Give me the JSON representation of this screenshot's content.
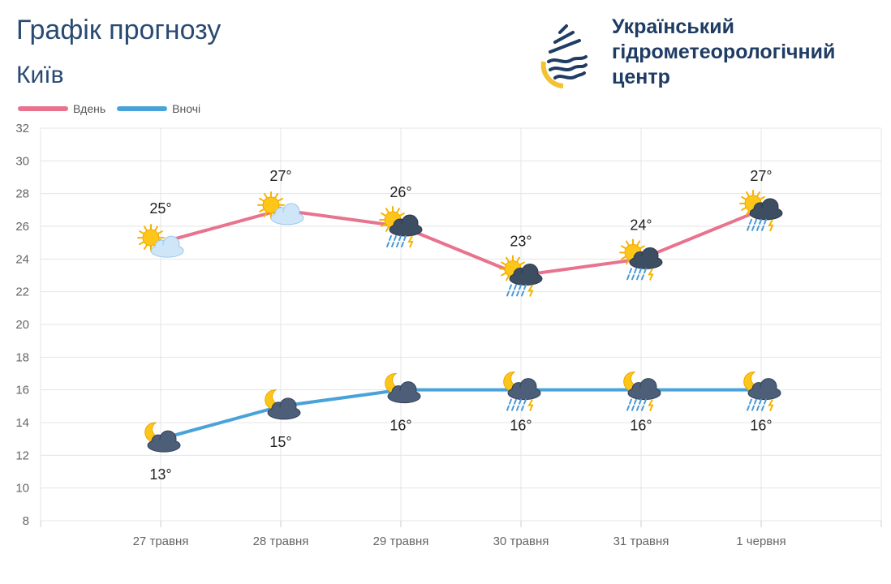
{
  "header": {
    "title": "Графік прогнозу",
    "city": "Київ"
  },
  "brand": {
    "lines": [
      "Український",
      "гідрометеорологічний",
      "центр"
    ]
  },
  "colors": {
    "day": "#e8738f",
    "night": "#4aa3d8",
    "title": "#2a4a72"
  },
  "legend": [
    {
      "name": "Вдень",
      "color": "#e8738f"
    },
    {
      "name": "Вночі",
      "color": "#4aa3d8"
    }
  ],
  "chart_data": {
    "type": "line",
    "categories": [
      "27 травня",
      "28 травня",
      "29 травня",
      "30 травня",
      "31 травня",
      "1 червня"
    ],
    "ylim": [
      8,
      32
    ],
    "yticks": [
      8,
      10,
      12,
      14,
      16,
      18,
      20,
      22,
      24,
      26,
      28,
      30,
      32
    ],
    "grid": true,
    "legend_position": "top-left",
    "series": [
      {
        "name": "Вдень",
        "values": [
          25,
          27,
          26,
          23,
          24,
          27
        ],
        "labels": [
          "25°",
          "27°",
          "26°",
          "23°",
          "24°",
          "27°"
        ],
        "icons": [
          "sun-cloud-icon",
          "sun-cloud-icon",
          "sun-thunderstorm-icon",
          "sun-thunderstorm-icon",
          "sun-thunderstorm-icon",
          "sun-thunderstorm-icon"
        ]
      },
      {
        "name": "Вночі",
        "values": [
          13,
          15,
          16,
          16,
          16,
          16
        ],
        "labels": [
          "13°",
          "15°",
          "16°",
          "16°",
          "16°",
          "16°"
        ],
        "icons": [
          "moon-cloud-icon",
          "moon-cloud-icon",
          "moon-cloud-icon",
          "moon-thunderstorm-icon",
          "moon-thunderstorm-icon",
          "moon-thunderstorm-icon"
        ]
      }
    ]
  }
}
